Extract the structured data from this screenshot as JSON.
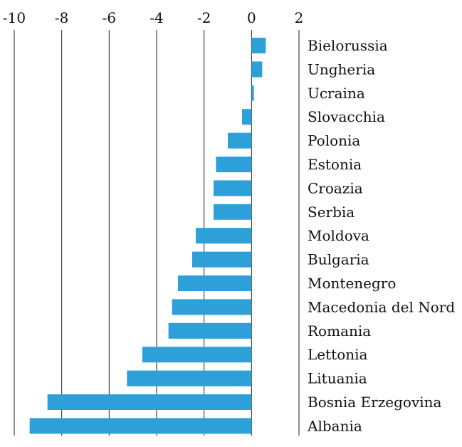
{
  "chart_data": {
    "type": "bar",
    "orientation": "horizontal",
    "title": "",
    "xlabel": "",
    "ylabel": "",
    "xlim": [
      -10,
      2
    ],
    "x_ticks": [
      -10,
      -8,
      -6,
      -4,
      -2,
      0,
      2
    ],
    "x_tick_labels": [
      "-10",
      "-8",
      "-6",
      "-4",
      "-2",
      "0",
      "2"
    ],
    "x_axis_position": "top",
    "grid": "vertical lines at each tick",
    "legend": "none",
    "bar_color": "#2d9fd9",
    "categories": [
      "Bielorussia",
      "Ungheria",
      "Ucraina",
      "Slovacchia",
      "Polonia",
      "Estonia",
      "Croazia",
      "Serbia",
      "Moldova",
      "Bulgaria",
      "Montenegro",
      "Macedonia del Nord",
      "Romania",
      "Lettonia",
      "Lituania",
      "Bosnia Erzegovina",
      "Albania"
    ],
    "values": [
      0.6,
      0.45,
      0.1,
      -0.4,
      -1.0,
      -1.5,
      -1.6,
      -1.6,
      -2.35,
      -2.5,
      -3.1,
      -3.35,
      -3.5,
      -4.6,
      -5.25,
      -8.6,
      -9.35
    ]
  }
}
